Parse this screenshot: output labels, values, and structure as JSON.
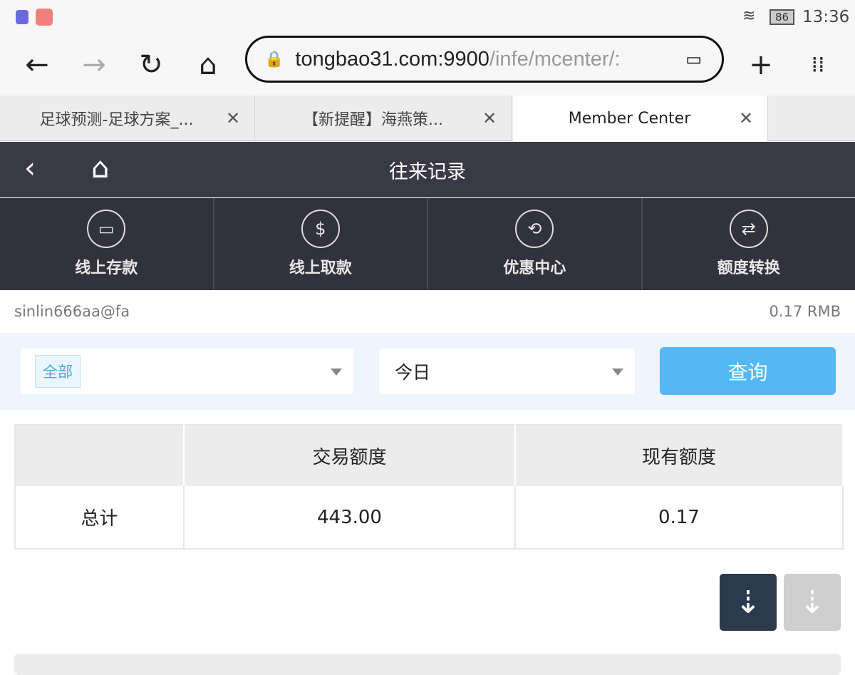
{
  "status_bar": {
    "time": "13:36",
    "battery": "86"
  },
  "browser": {
    "url_host": "tongbao31.com:9900",
    "url_path": "/infe/mcenter/:",
    "tabs": [
      {
        "label": "足球预测-足球方案_..."
      },
      {
        "label": "【新提醒】海燕策..."
      },
      {
        "label": "Member Center"
      }
    ]
  },
  "header": {
    "title": "往来记录"
  },
  "menu": [
    {
      "label": "线上存款",
      "icon": "deposit-icon"
    },
    {
      "label": "线上取款",
      "icon": "withdraw-icon"
    },
    {
      "label": "优惠中心",
      "icon": "promo-icon"
    },
    {
      "label": "额度转换",
      "icon": "transfer-icon"
    }
  ],
  "account": {
    "username": "sinlin666aa@fa",
    "balance": "0.17 RMB"
  },
  "filter": {
    "type_tag": "全部",
    "date": "今日",
    "query_label": "查询"
  },
  "table": {
    "headers": [
      "",
      "交易额度",
      "现有额度"
    ],
    "rows": [
      [
        "总计",
        "443.00",
        "0.17"
      ]
    ]
  },
  "colors": {
    "header": "#3a3a46",
    "accent": "#55b8f6",
    "sort_active": "#2c3a4f"
  }
}
